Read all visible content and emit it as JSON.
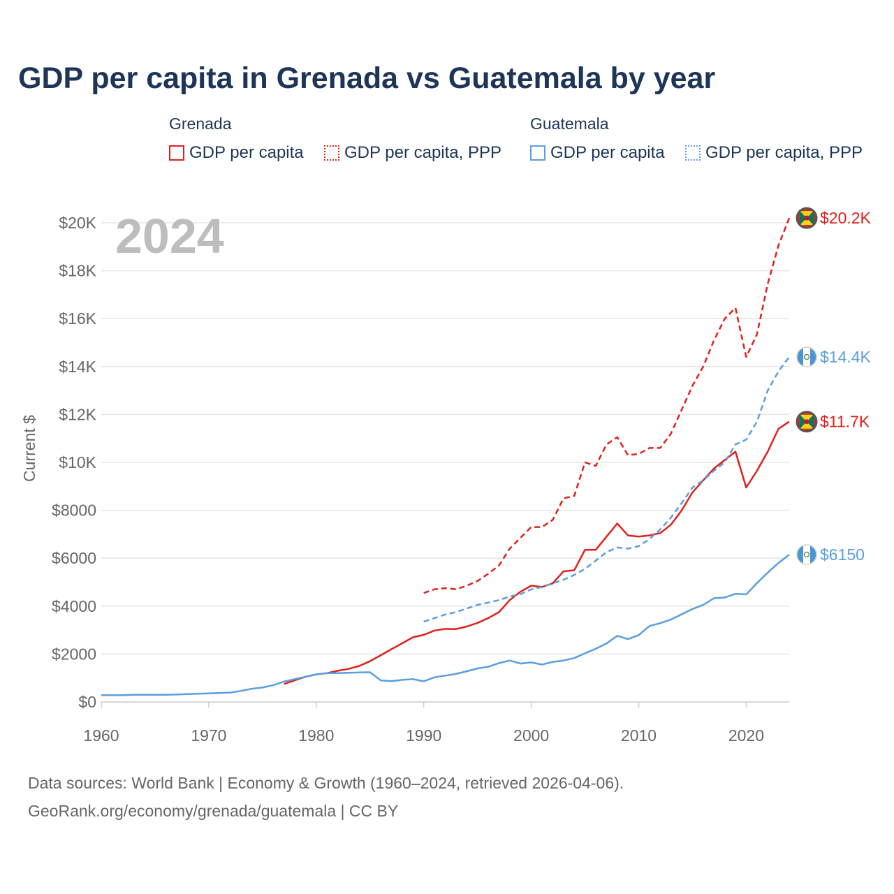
{
  "title": "GDP per capita in Grenada vs Guatemala by year",
  "legend": {
    "groups": [
      {
        "name": "Grenada",
        "color": "#e0201b",
        "items": [
          "GDP per capita",
          "GDP per capita, PPP"
        ]
      },
      {
        "name": "Guatemala",
        "color": "#5a9ee0",
        "items": [
          "GDP per capita",
          "GDP per capita, PPP"
        ]
      }
    ]
  },
  "year_label": "2024",
  "footer": {
    "line1": "Data sources: World Bank | Economy & Growth (1960–2024, retrieved 2026-04-06).",
    "line2": "GeoRank.org/economy/grenada/guatemala | CC BY"
  },
  "chart_data": {
    "type": "line",
    "title": "GDP per capita in Grenada vs Guatemala by year",
    "xlabel": "",
    "ylabel": "Current $",
    "xlim": [
      1960,
      2024
    ],
    "ylim": [
      0,
      21000
    ],
    "x_ticks": [
      1960,
      1970,
      1980,
      1990,
      2000,
      2010,
      2020
    ],
    "y_ticks": [
      0,
      2000,
      4000,
      6000,
      8000,
      10000,
      12000,
      14000,
      16000,
      18000,
      20000
    ],
    "y_tick_labels": [
      "$0",
      "$2000",
      "$4000",
      "$6000",
      "$8000",
      "$10K",
      "$12K",
      "$14K",
      "$16K",
      "$18K",
      "$20K"
    ],
    "grid": true,
    "series": [
      {
        "name": "Grenada GDP per capita",
        "color": "#e0201b",
        "dash": "solid",
        "end_label": "$11.7K",
        "points": [
          [
            1977,
            750
          ],
          [
            1978,
            900
          ],
          [
            1979,
            1050
          ],
          [
            1980,
            1150
          ],
          [
            1981,
            1200
          ],
          [
            1982,
            1300
          ],
          [
            1983,
            1380
          ],
          [
            1984,
            1500
          ],
          [
            1985,
            1700
          ],
          [
            1986,
            1950
          ],
          [
            1987,
            2200
          ],
          [
            1988,
            2450
          ],
          [
            1989,
            2700
          ],
          [
            1990,
            2800
          ],
          [
            1991,
            2980
          ],
          [
            1992,
            3050
          ],
          [
            1993,
            3040
          ],
          [
            1994,
            3150
          ],
          [
            1995,
            3300
          ],
          [
            1996,
            3500
          ],
          [
            1997,
            3750
          ],
          [
            1998,
            4250
          ],
          [
            1999,
            4600
          ],
          [
            2000,
            4850
          ],
          [
            2001,
            4800
          ],
          [
            2002,
            4950
          ],
          [
            2003,
            5450
          ],
          [
            2004,
            5500
          ],
          [
            2005,
            6350
          ],
          [
            2006,
            6350
          ],
          [
            2007,
            6900
          ],
          [
            2008,
            7450
          ],
          [
            2009,
            6950
          ],
          [
            2010,
            6900
          ],
          [
            2011,
            6950
          ],
          [
            2012,
            7050
          ],
          [
            2013,
            7400
          ],
          [
            2014,
            8000
          ],
          [
            2015,
            8750
          ],
          [
            2016,
            9250
          ],
          [
            2017,
            9750
          ],
          [
            2018,
            10100
          ],
          [
            2019,
            10450
          ],
          [
            2020,
            8950
          ],
          [
            2021,
            9650
          ],
          [
            2022,
            10450
          ],
          [
            2023,
            11400
          ],
          [
            2024,
            11700
          ]
        ]
      },
      {
        "name": "Grenada GDP per capita, PPP",
        "color": "#e0201b",
        "dash": "dashed",
        "end_label": "$20.2K",
        "points": [
          [
            1990,
            4550
          ],
          [
            1991,
            4700
          ],
          [
            1992,
            4750
          ],
          [
            1993,
            4700
          ],
          [
            1994,
            4850
          ],
          [
            1995,
            5050
          ],
          [
            1996,
            5350
          ],
          [
            1997,
            5700
          ],
          [
            1998,
            6400
          ],
          [
            1999,
            6850
          ],
          [
            2000,
            7300
          ],
          [
            2001,
            7300
          ],
          [
            2002,
            7600
          ],
          [
            2003,
            8500
          ],
          [
            2004,
            8600
          ],
          [
            2005,
            10000
          ],
          [
            2006,
            9850
          ],
          [
            2007,
            10750
          ],
          [
            2008,
            11050
          ],
          [
            2009,
            10300
          ],
          [
            2010,
            10350
          ],
          [
            2011,
            10600
          ],
          [
            2012,
            10600
          ],
          [
            2013,
            11200
          ],
          [
            2014,
            12200
          ],
          [
            2015,
            13200
          ],
          [
            2016,
            14000
          ],
          [
            2017,
            15100
          ],
          [
            2018,
            16000
          ],
          [
            2019,
            16450
          ],
          [
            2020,
            14400
          ],
          [
            2021,
            15350
          ],
          [
            2022,
            17450
          ],
          [
            2023,
            19050
          ],
          [
            2024,
            20200
          ]
        ]
      },
      {
        "name": "Guatemala GDP per capita",
        "color": "#5a9ee0",
        "dash": "solid",
        "end_label": "$6150",
        "points": [
          [
            1960,
            280
          ],
          [
            1961,
            280
          ],
          [
            1962,
            280
          ],
          [
            1963,
            300
          ],
          [
            1964,
            300
          ],
          [
            1965,
            300
          ],
          [
            1966,
            300
          ],
          [
            1967,
            310
          ],
          [
            1968,
            330
          ],
          [
            1969,
            340
          ],
          [
            1970,
            360
          ],
          [
            1971,
            370
          ],
          [
            1972,
            390
          ],
          [
            1973,
            460
          ],
          [
            1974,
            550
          ],
          [
            1975,
            600
          ],
          [
            1976,
            700
          ],
          [
            1977,
            850
          ],
          [
            1978,
            950
          ],
          [
            1979,
            1050
          ],
          [
            1980,
            1150
          ],
          [
            1981,
            1200
          ],
          [
            1982,
            1200
          ],
          [
            1983,
            1220
          ],
          [
            1984,
            1230
          ],
          [
            1985,
            1240
          ],
          [
            1986,
            900
          ],
          [
            1987,
            870
          ],
          [
            1988,
            920
          ],
          [
            1989,
            950
          ],
          [
            1990,
            860
          ],
          [
            1991,
            1030
          ],
          [
            1992,
            1100
          ],
          [
            1993,
            1170
          ],
          [
            1994,
            1280
          ],
          [
            1995,
            1400
          ],
          [
            1996,
            1470
          ],
          [
            1997,
            1620
          ],
          [
            1998,
            1730
          ],
          [
            1999,
            1600
          ],
          [
            2000,
            1650
          ],
          [
            2001,
            1560
          ],
          [
            2002,
            1670
          ],
          [
            2003,
            1730
          ],
          [
            2004,
            1830
          ],
          [
            2005,
            2030
          ],
          [
            2006,
            2220
          ],
          [
            2007,
            2440
          ],
          [
            2008,
            2760
          ],
          [
            2009,
            2620
          ],
          [
            2010,
            2790
          ],
          [
            2011,
            3170
          ],
          [
            2012,
            3290
          ],
          [
            2013,
            3440
          ],
          [
            2014,
            3660
          ],
          [
            2015,
            3880
          ],
          [
            2016,
            4050
          ],
          [
            2017,
            4330
          ],
          [
            2018,
            4360
          ],
          [
            2019,
            4510
          ],
          [
            2020,
            4490
          ],
          [
            2021,
            4960
          ],
          [
            2022,
            5400
          ],
          [
            2023,
            5800
          ],
          [
            2024,
            6150
          ]
        ]
      },
      {
        "name": "Guatemala GDP per capita, PPP",
        "color": "#5a9ee0",
        "dash": "dashed",
        "end_label": "$14.4K",
        "points": [
          [
            1990,
            3350
          ],
          [
            1991,
            3500
          ],
          [
            1992,
            3650
          ],
          [
            1993,
            3750
          ],
          [
            1994,
            3900
          ],
          [
            1995,
            4050
          ],
          [
            1996,
            4150
          ],
          [
            1997,
            4250
          ],
          [
            1998,
            4400
          ],
          [
            1999,
            4500
          ],
          [
            2000,
            4700
          ],
          [
            2001,
            4800
          ],
          [
            2002,
            4950
          ],
          [
            2003,
            5100
          ],
          [
            2004,
            5300
          ],
          [
            2005,
            5550
          ],
          [
            2006,
            5900
          ],
          [
            2007,
            6250
          ],
          [
            2008,
            6450
          ],
          [
            2009,
            6400
          ],
          [
            2010,
            6500
          ],
          [
            2011,
            6800
          ],
          [
            2012,
            7200
          ],
          [
            2013,
            7700
          ],
          [
            2014,
            8300
          ],
          [
            2015,
            8950
          ],
          [
            2016,
            9250
          ],
          [
            2017,
            9650
          ],
          [
            2018,
            10000
          ],
          [
            2019,
            10750
          ],
          [
            2020,
            10950
          ],
          [
            2021,
            11700
          ],
          [
            2022,
            13000
          ],
          [
            2023,
            13800
          ],
          [
            2024,
            14400
          ]
        ]
      }
    ]
  }
}
